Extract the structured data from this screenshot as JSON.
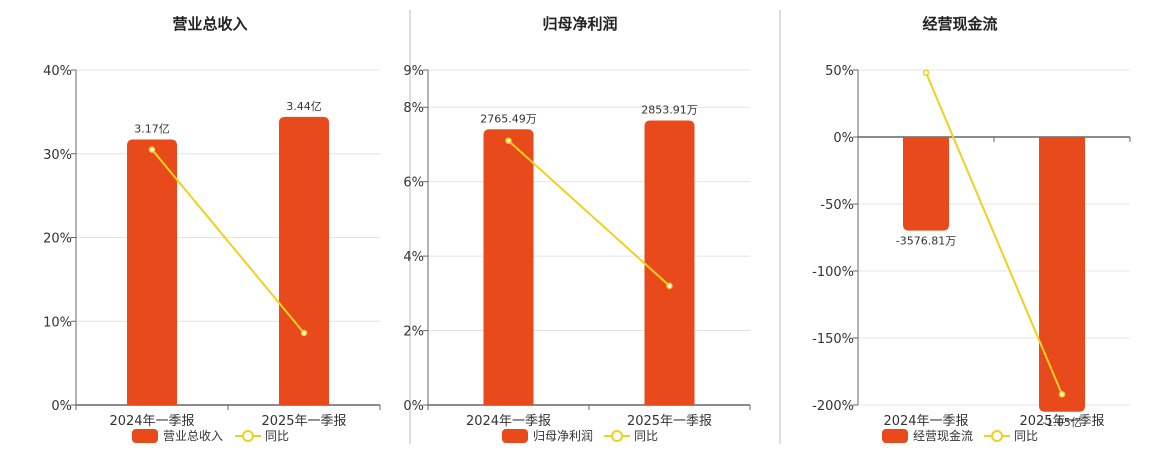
{
  "colors": {
    "bar": "#e84a1b",
    "line": "#f0d020",
    "grid": "#e4e4e4",
    "axis": "#666666",
    "separator": "#bbbbbb"
  },
  "chart_data": [
    {
      "type": "bar",
      "title": "营业总收入",
      "categories": [
        "2024年一季报",
        "2025年一季报"
      ],
      "series": [
        {
          "name": "营业总收入",
          "kind": "bar",
          "values": [
            3.17,
            3.44
          ],
          "labels": [
            "3.17亿",
            "3.44亿"
          ]
        },
        {
          "name": "同比",
          "kind": "line",
          "values": [
            30.5,
            8.6
          ]
        }
      ],
      "y_pct_ticks": [
        "0%",
        "10%",
        "20%",
        "30%",
        "40%"
      ],
      "y_pct_range": [
        0,
        40
      ],
      "bar_range": [
        0,
        4.0
      ],
      "legend": [
        "营业总收入",
        "同比"
      ],
      "legend_position": "bottom"
    },
    {
      "type": "bar",
      "title": "归母净利润",
      "categories": [
        "2024年一季报",
        "2025年一季报"
      ],
      "series": [
        {
          "name": "归母净利润",
          "kind": "bar",
          "values": [
            2765.49,
            2853.91
          ],
          "labels": [
            "2765.49万",
            "2853.91万"
          ]
        },
        {
          "name": "同比",
          "kind": "line",
          "values": [
            7.1,
            3.2
          ]
        }
      ],
      "y_pct_ticks": [
        "0%",
        "2%",
        "4%",
        "6%",
        "8%",
        "9%"
      ],
      "y_pct_range": [
        0,
        9
      ],
      "bar_range": [
        0,
        3360
      ],
      "legend": [
        "归母净利润",
        "同比"
      ],
      "legend_position": "bottom"
    },
    {
      "type": "bar",
      "title": "经营现金流",
      "categories": [
        "2024年一季报",
        "2025年一季报"
      ],
      "series": [
        {
          "name": "经营现金流",
          "kind": "bar",
          "values": [
            -3576.81,
            -10500
          ],
          "labels": [
            "-3576.81万",
            "-1.05亿"
          ]
        },
        {
          "name": "同比",
          "kind": "line",
          "values": [
            48,
            -192
          ]
        }
      ],
      "y_pct_ticks": [
        "50%",
        "0%",
        "-50%",
        "-100%",
        "-150%",
        "-200%"
      ],
      "y_pct_range": [
        -200,
        50
      ],
      "bar_range": [
        -12800,
        0
      ],
      "legend": [
        "经营现金流",
        "同比"
      ],
      "legend_position": "bottom"
    }
  ]
}
